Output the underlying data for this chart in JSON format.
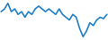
{
  "values": [
    2,
    3,
    5,
    2,
    3,
    1,
    2,
    0,
    2,
    1,
    3,
    4,
    3,
    2,
    3,
    2,
    1,
    3,
    1,
    0,
    -1,
    1,
    0,
    -4,
    -7,
    -5,
    -2,
    -3,
    -1,
    0,
    -0.5,
    1
  ],
  "line_color": "#2080c8",
  "bg_color": "#ffffff",
  "linewidth": 1.2
}
